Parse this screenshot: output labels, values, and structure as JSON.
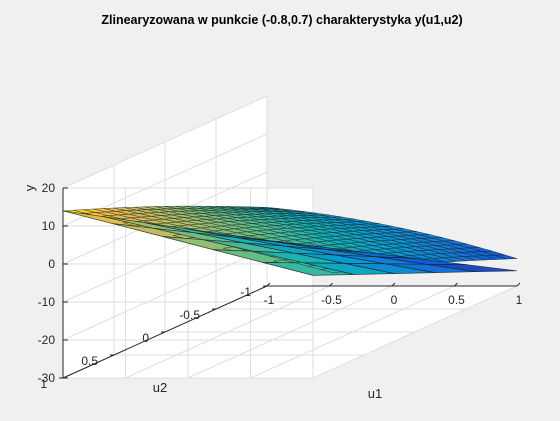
{
  "chart_data": {
    "type": "surface3d",
    "title": "Zlinearyzowana w punkcie (-0.8,0.7) charakterystyka y(u1,u2)",
    "xlabel": "u1",
    "ylabel": "u2",
    "zlabel": "y",
    "xlim": [
      -1,
      1
    ],
    "ylim": [
      -1,
      1
    ],
    "zlim": [
      -30,
      20
    ],
    "xticks": [
      -1,
      -0.5,
      0,
      0.5,
      1
    ],
    "yticks": [
      -1,
      -0.5,
      0,
      0.5,
      1
    ],
    "zticks": [
      -30,
      -20,
      -10,
      0,
      10,
      20
    ],
    "xtick_labels": [
      "-1",
      "-0.5",
      "0",
      "0.5",
      "1"
    ],
    "ytick_labels": [
      "-1",
      "-0.5",
      "0",
      "0.5",
      "1"
    ],
    "ztick_labels": [
      "-30",
      "-20",
      "-10",
      "0",
      "10",
      "20"
    ],
    "grid": true,
    "colormap": "parula",
    "surfaces": [
      {
        "kind": "nonlinear",
        "grid_size": 21,
        "corner_values": {
          "u1=-1,u2=1": 14,
          "u1=1,u2=1": -3,
          "u1=-1,u2=-1": -7.5,
          "u1=1,u2=-1": -21
        }
      },
      {
        "kind": "linearized",
        "grid_size": 6,
        "corner_values": {
          "u1=-1,u2=1": 14,
          "u1=1,u2=1": -3,
          "u1=-1,u2=-1": -18,
          "u1=1,u2=-1": -26
        }
      }
    ]
  }
}
